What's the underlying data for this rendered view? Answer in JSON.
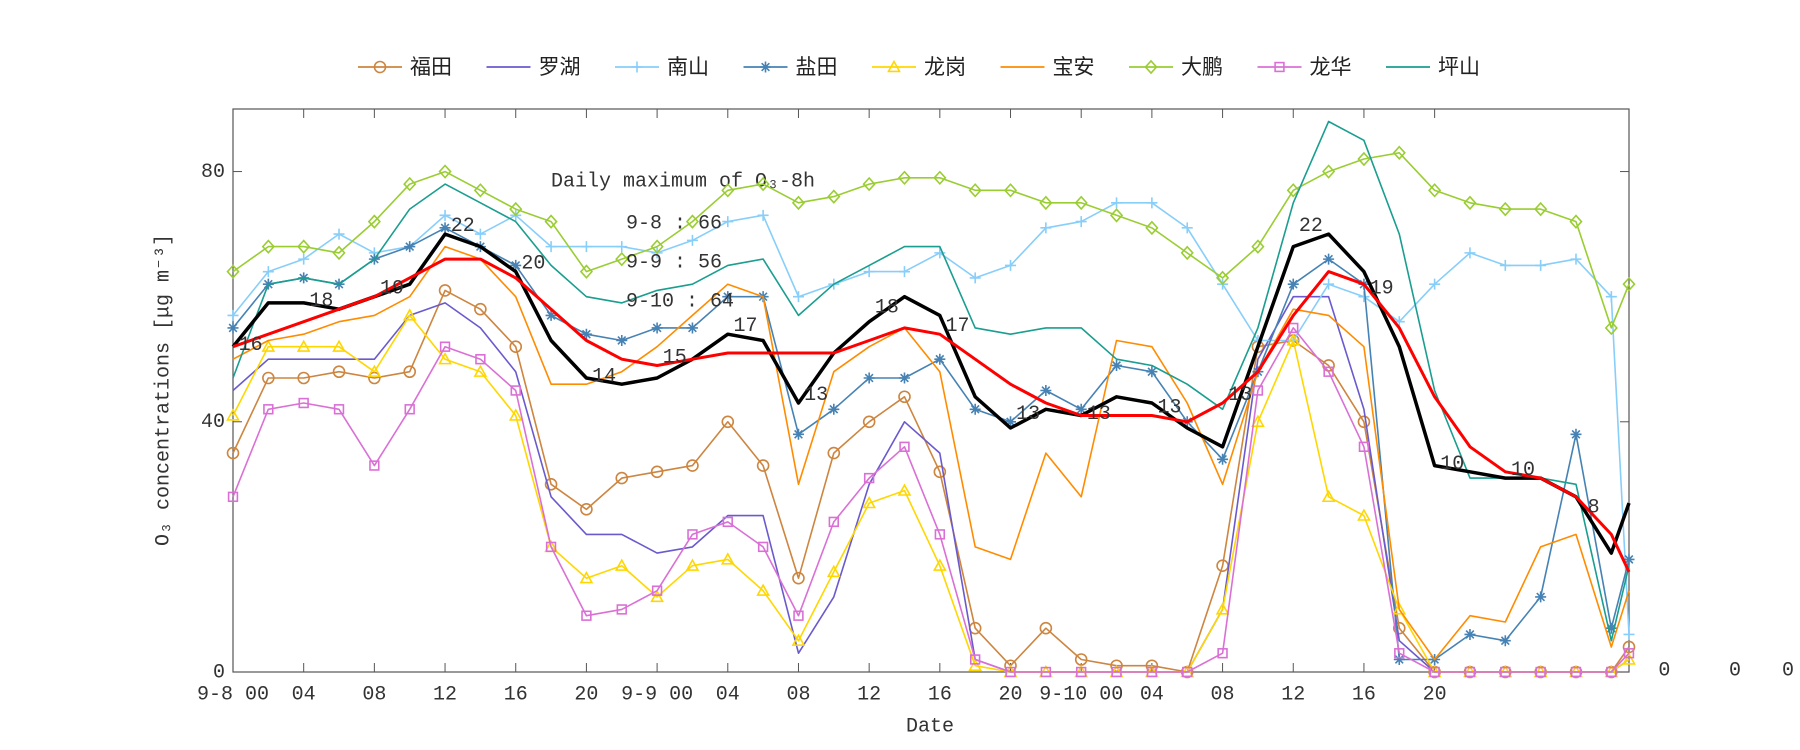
{
  "chart_data": {
    "type": "line",
    "xlabel": "Date",
    "ylabel": "O₃ concentrations [μg m⁻³]",
    "xlim": [
      0,
      79
    ],
    "ylim": [
      0,
      90
    ],
    "yticks": [
      0,
      40,
      80
    ],
    "xticks": [
      {
        "value": 0,
        "label": "9-8 00"
      },
      {
        "value": 4,
        "label": "04"
      },
      {
        "value": 8,
        "label": "08"
      },
      {
        "value": 12,
        "label": "12"
      },
      {
        "value": 16,
        "label": "16"
      },
      {
        "value": 20,
        "label": "20"
      },
      {
        "value": 24,
        "label": "9-9 00"
      },
      {
        "value": 28,
        "label": "04"
      },
      {
        "value": 32,
        "label": "08"
      },
      {
        "value": 36,
        "label": "12"
      },
      {
        "value": 40,
        "label": "16"
      },
      {
        "value": 44,
        "label": "20"
      },
      {
        "value": 48,
        "label": "9-10 00"
      },
      {
        "value": 52,
        "label": "04"
      },
      {
        "value": 56,
        "label": "08"
      },
      {
        "value": 60,
        "label": "12"
      },
      {
        "value": 64,
        "label": "16"
      },
      {
        "value": 68,
        "label": "20"
      }
    ],
    "x": [
      0,
      2,
      4,
      6,
      8,
      10,
      12,
      14,
      16,
      18,
      20,
      22,
      24,
      26,
      28,
      30,
      32,
      34,
      36,
      38,
      40,
      42,
      44,
      46,
      48,
      50,
      52,
      54,
      56,
      58,
      60,
      62,
      64,
      66,
      68,
      70,
      72,
      74,
      76,
      78,
      79
    ],
    "series": [
      {
        "name": "福田",
        "color": "#cd853f",
        "marker": "o",
        "values": [
          35,
          47,
          47,
          48,
          47,
          48,
          61,
          58,
          52,
          30,
          26,
          31,
          32,
          33,
          40,
          33,
          15,
          35,
          40,
          44,
          32,
          7,
          1,
          7,
          2,
          1,
          1,
          0,
          17,
          52,
          53,
          49,
          40,
          7,
          0,
          0,
          0,
          0,
          0,
          0,
          4
        ]
      },
      {
        "name": "罗湖",
        "color": "#6a5acd",
        "values": [
          45,
          50,
          50,
          50,
          50,
          57,
          59,
          55,
          48,
          28,
          22,
          22,
          19,
          20,
          25,
          25,
          3,
          12,
          30,
          40,
          35,
          2,
          0,
          0,
          0,
          0,
          0,
          0,
          10,
          50,
          60,
          60,
          42,
          5,
          0,
          0,
          0,
          0,
          0,
          0,
          2
        ]
      },
      {
        "name": "南山",
        "color": "#87cefa",
        "marker": "+",
        "values": [
          57,
          64,
          66,
          70,
          67,
          68,
          73,
          70,
          73,
          68,
          68,
          68,
          67,
          69,
          72,
          73,
          60,
          62,
          64,
          64,
          67,
          63,
          65,
          71,
          72,
          75,
          75,
          71,
          62,
          53,
          53,
          62,
          60,
          56,
          62,
          67,
          65,
          65,
          66,
          60,
          6
        ]
      },
      {
        "name": "盐田",
        "color": "#4682b4",
        "marker": "*",
        "values": [
          55,
          62,
          63,
          62,
          66,
          68,
          71,
          68,
          65,
          57,
          54,
          53,
          55,
          55,
          60,
          60,
          38,
          42,
          47,
          47,
          50,
          42,
          40,
          45,
          42,
          49,
          48,
          40,
          34,
          48,
          62,
          66,
          62,
          2,
          2,
          6,
          5,
          12,
          38,
          7,
          18
        ]
      },
      {
        "name": "龙岗",
        "color": "#ffd700",
        "marker": "^",
        "values": [
          41,
          52,
          52,
          52,
          48,
          57,
          50,
          48,
          41,
          20,
          15,
          17,
          12,
          17,
          18,
          13,
          5,
          16,
          27,
          29,
          17,
          1,
          0,
          0,
          0,
          0,
          0,
          0,
          10,
          40,
          53,
          28,
          25,
          10,
          0,
          0,
          0,
          0,
          0,
          0,
          2
        ]
      },
      {
        "name": "宝安",
        "color": "#ff8c00",
        "values": [
          50,
          53,
          54,
          56,
          57,
          60,
          68,
          66,
          60,
          46,
          46,
          48,
          52,
          57,
          62,
          60,
          30,
          48,
          52,
          55,
          48,
          20,
          18,
          35,
          28,
          53,
          52,
          43,
          30,
          48,
          58,
          57,
          52,
          10,
          2,
          9,
          8,
          20,
          22,
          4,
          13
        ]
      },
      {
        "name": "大鹏",
        "color": "#9acd32",
        "marker": "d",
        "values": [
          64,
          68,
          68,
          67,
          72,
          78,
          80,
          77,
          74,
          72,
          64,
          66,
          68,
          72,
          77,
          78,
          75,
          76,
          78,
          79,
          79,
          77,
          77,
          75,
          75,
          73,
          71,
          67,
          63,
          68,
          77,
          80,
          82,
          83,
          77,
          75,
          74,
          74,
          72,
          55,
          62
        ]
      },
      {
        "name": "龙华",
        "color": "#da70d6",
        "marker": "s",
        "values": [
          28,
          42,
          43,
          42,
          33,
          42,
          52,
          50,
          45,
          20,
          9,
          10,
          13,
          22,
          24,
          20,
          9,
          24,
          31,
          36,
          22,
          2,
          0,
          0,
          0,
          0,
          0,
          0,
          3,
          45,
          55,
          48,
          36,
          3,
          0,
          0,
          0,
          0,
          0,
          0,
          3
        ]
      },
      {
        "name": "坪山",
        "color": "#1a9e8f",
        "values": [
          47,
          62,
          63,
          62,
          66,
          74,
          78,
          75,
          72,
          65,
          60,
          59,
          61,
          62,
          65,
          66,
          57,
          62,
          65,
          68,
          68,
          55,
          54,
          55,
          55,
          50,
          49,
          46,
          42,
          55,
          75,
          88,
          85,
          70,
          45,
          31,
          31,
          31,
          30,
          5,
          17
        ]
      },
      {
        "color": "#000000",
        "width": 3.5,
        "values": [
          52,
          59,
          59,
          58,
          60,
          62,
          70,
          68,
          64,
          53,
          47,
          46,
          47,
          50,
          54,
          53,
          43,
          51,
          56,
          60,
          57,
          44,
          39,
          42,
          41,
          44,
          43,
          39,
          36,
          52,
          68,
          70,
          64,
          52,
          33,
          32,
          31,
          31,
          28,
          19,
          27
        ]
      },
      {
        "color": "#ff0000",
        "width": 3,
        "values": [
          52,
          54,
          56,
          58,
          60,
          63,
          66,
          66,
          63,
          58,
          53,
          50,
          49,
          50,
          51,
          51,
          51,
          51,
          53,
          55,
          54,
          50,
          46,
          43,
          41,
          41,
          41,
          40,
          43,
          48,
          57,
          64,
          62,
          55,
          44,
          36,
          32,
          31,
          28,
          22,
          16
        ]
      }
    ],
    "annotations": [
      {
        "text": "16",
        "x": 1,
        "y": 52
      },
      {
        "text": "18",
        "x": 5,
        "y": 59
      },
      {
        "text": "19",
        "x": 9,
        "y": 61
      },
      {
        "text": "22",
        "x": 13,
        "y": 71
      },
      {
        "text": "20",
        "x": 17,
        "y": 65
      },
      {
        "text": "14",
        "x": 21,
        "y": 47
      },
      {
        "text": "15",
        "x": 25,
        "y": 50
      },
      {
        "text": "17",
        "x": 29,
        "y": 55
      },
      {
        "text": "13",
        "x": 33,
        "y": 44
      },
      {
        "text": "18",
        "x": 37,
        "y": 58
      },
      {
        "text": "17",
        "x": 41,
        "y": 55
      },
      {
        "text": "13",
        "x": 45,
        "y": 41
      },
      {
        "text": "13",
        "x": 49,
        "y": 41
      },
      {
        "text": "13",
        "x": 53,
        "y": 42
      },
      {
        "text": "13",
        "x": 57,
        "y": 44
      },
      {
        "text": "22",
        "x": 61,
        "y": 71
      },
      {
        "text": "19",
        "x": 65,
        "y": 61
      },
      {
        "text": "10",
        "x": 69,
        "y": 33
      },
      {
        "text": "10",
        "x": 73,
        "y": 32
      },
      {
        "text": "8",
        "x": 77,
        "y": 26
      },
      {
        "text": "0",
        "x": 81,
        "y": 0
      },
      {
        "text": "0",
        "x": 85,
        "y": 0
      },
      {
        "text": "0",
        "x": 88,
        "y": 0
      }
    ],
    "annotation_box": {
      "title": "Daily maximum of O₃-8h",
      "lines": [
        "9-8 : 66",
        "9-9 : 56",
        "9-10 : 64"
      ]
    }
  }
}
